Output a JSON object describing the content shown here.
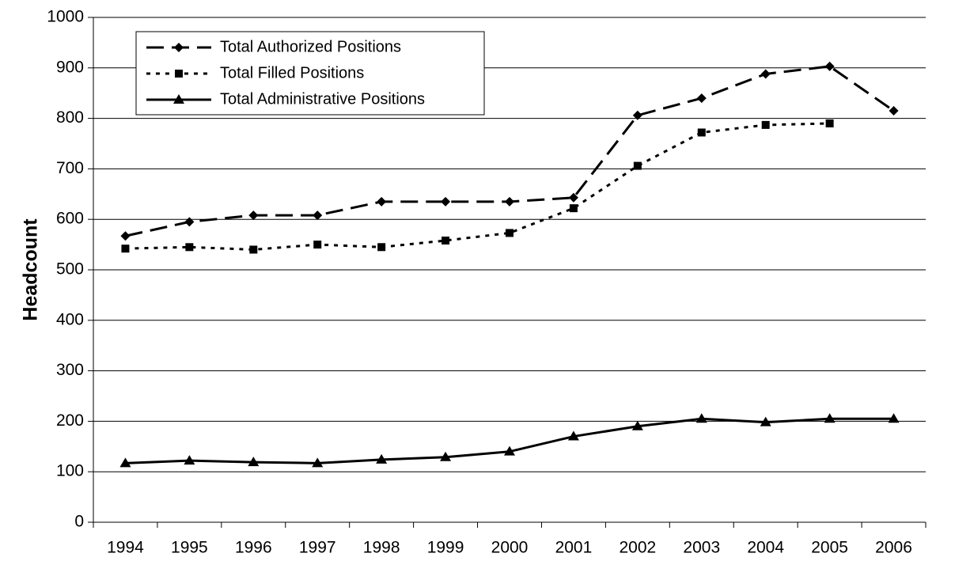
{
  "chart_data": {
    "type": "line",
    "y_axis_label": "Headcount",
    "categories": [
      "1994",
      "1995",
      "1996",
      "1997",
      "1998",
      "1999",
      "2000",
      "2001",
      "2002",
      "2003",
      "2004",
      "2005",
      "2006"
    ],
    "series": [
      {
        "name": "Total Authorized Positions",
        "color": "#000000",
        "line_style": "dashed",
        "marker": "diamond",
        "values": [
          567,
          595,
          608,
          608,
          635,
          635,
          635,
          643,
          806,
          840,
          888,
          903,
          815
        ]
      },
      {
        "name": "Total Filled Positions",
        "color": "#000000",
        "line_style": "dotted",
        "marker": "square",
        "values": [
          542,
          545,
          540,
          550,
          545,
          558,
          573,
          622,
          706,
          772,
          787,
          790,
          null
        ]
      },
      {
        "name": "Total Administrative Positions",
        "color": "#000000",
        "line_style": "solid",
        "marker": "triangle",
        "values": [
          117,
          122,
          119,
          117,
          124,
          129,
          140,
          170,
          190,
          205,
          198,
          205,
          205
        ]
      }
    ],
    "ylim": [
      0,
      1000
    ],
    "yticks": [
      0,
      100,
      200,
      300,
      400,
      500,
      600,
      700,
      800,
      900,
      1000
    ],
    "grid": true,
    "legend": "upper left"
  }
}
